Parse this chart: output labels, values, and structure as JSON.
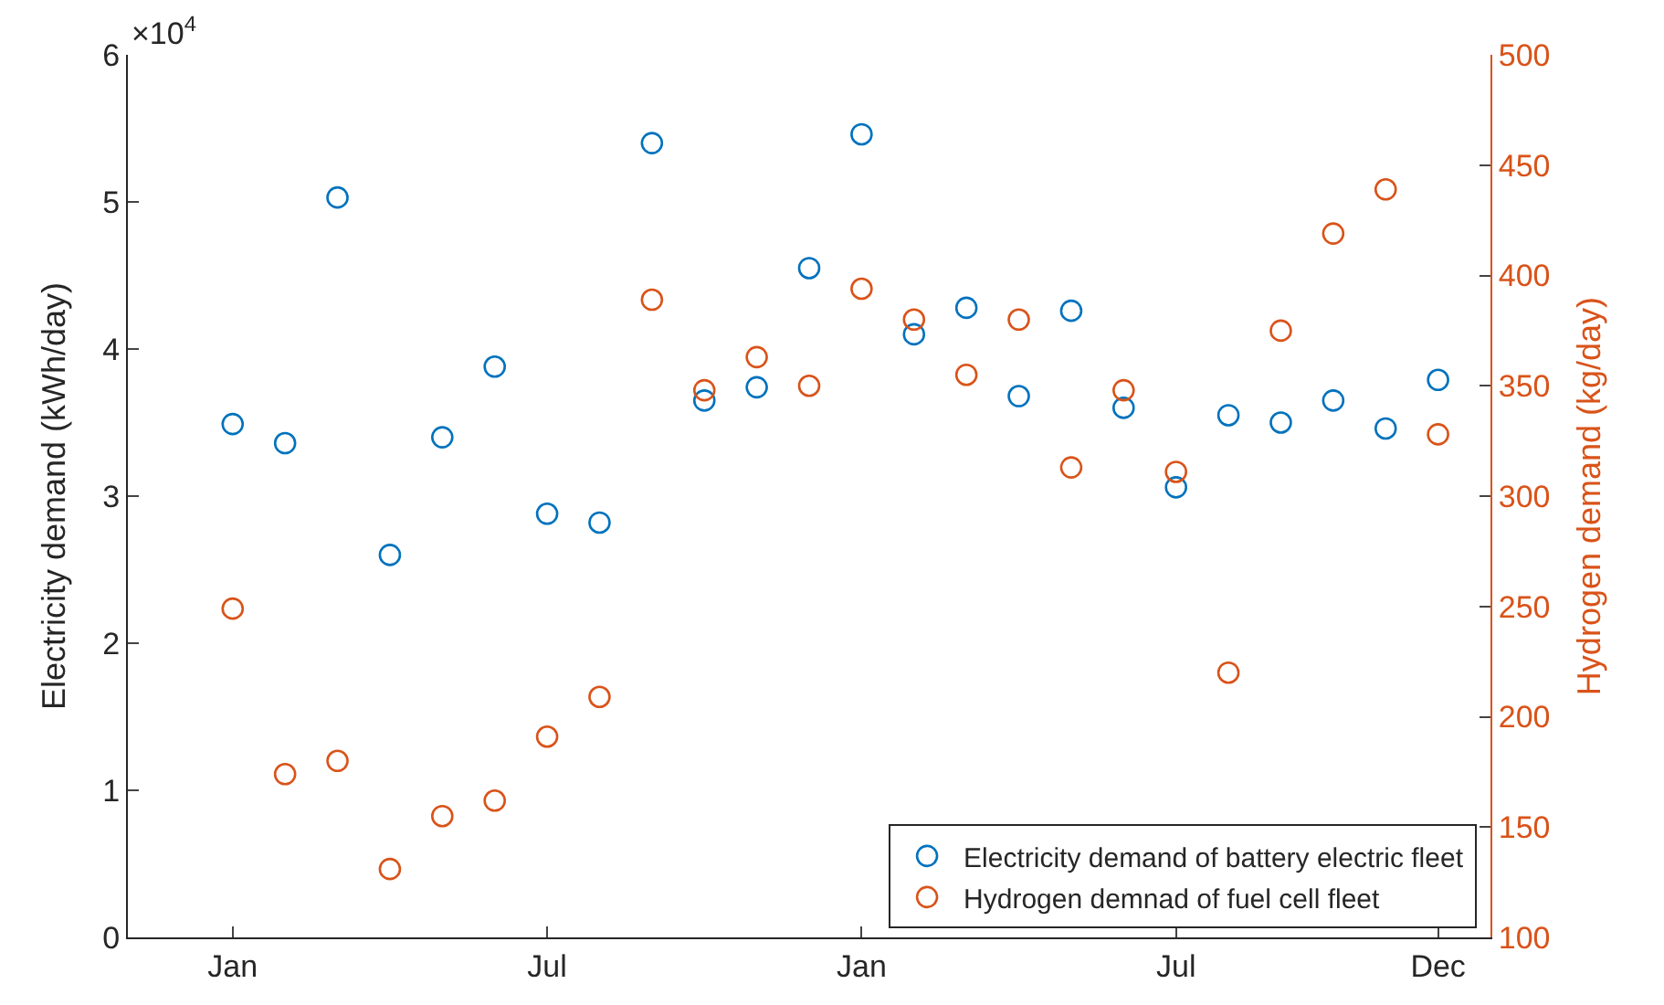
{
  "chart_data": {
    "type": "scatter",
    "ylabel": "Electricity demand (kWh/day)",
    "y2label": "Hydrogen demand (kg/day)",
    "categories": [
      "Jan",
      null,
      null,
      null,
      null,
      null,
      "Jul",
      null,
      null,
      null,
      null,
      null,
      "Jan",
      null,
      null,
      null,
      null,
      null,
      "Jul",
      null,
      null,
      null,
      null,
      "Dec"
    ],
    "series": [
      {
        "name": "Electricity demand of battery electric fleet",
        "color": "#0072bd",
        "values": [
          3.49,
          3.36,
          5.03,
          2.6,
          3.4,
          3.88,
          2.88,
          2.82,
          5.4,
          3.65,
          3.74,
          4.55,
          5.46,
          4.1,
          4.28,
          3.68,
          4.26,
          3.6,
          3.06,
          3.55,
          3.5,
          3.65,
          3.46,
          3.79
        ]
      },
      {
        "name": "Hydrogen demnad of fuel cell fleet",
        "color": "#d95319",
        "axis": "y2",
        "values": [
          249,
          174,
          180,
          131,
          155,
          162,
          191,
          209,
          389,
          348,
          363,
          350,
          394,
          380,
          355,
          380,
          313,
          348,
          311,
          220,
          375,
          419,
          439,
          328
        ]
      }
    ],
    "ylim": [
      0,
      6
    ],
    "yticks": [
      0,
      1,
      2,
      3,
      4,
      5,
      6
    ],
    "y2lim": [
      100,
      500
    ],
    "y2ticks": [
      100,
      150,
      200,
      250,
      300,
      350,
      400,
      450,
      500
    ],
    "annotations": [
      "×10$^{4}$"
    ],
    "marker": "circle",
    "grid": false,
    "legend": "bottom right"
  }
}
